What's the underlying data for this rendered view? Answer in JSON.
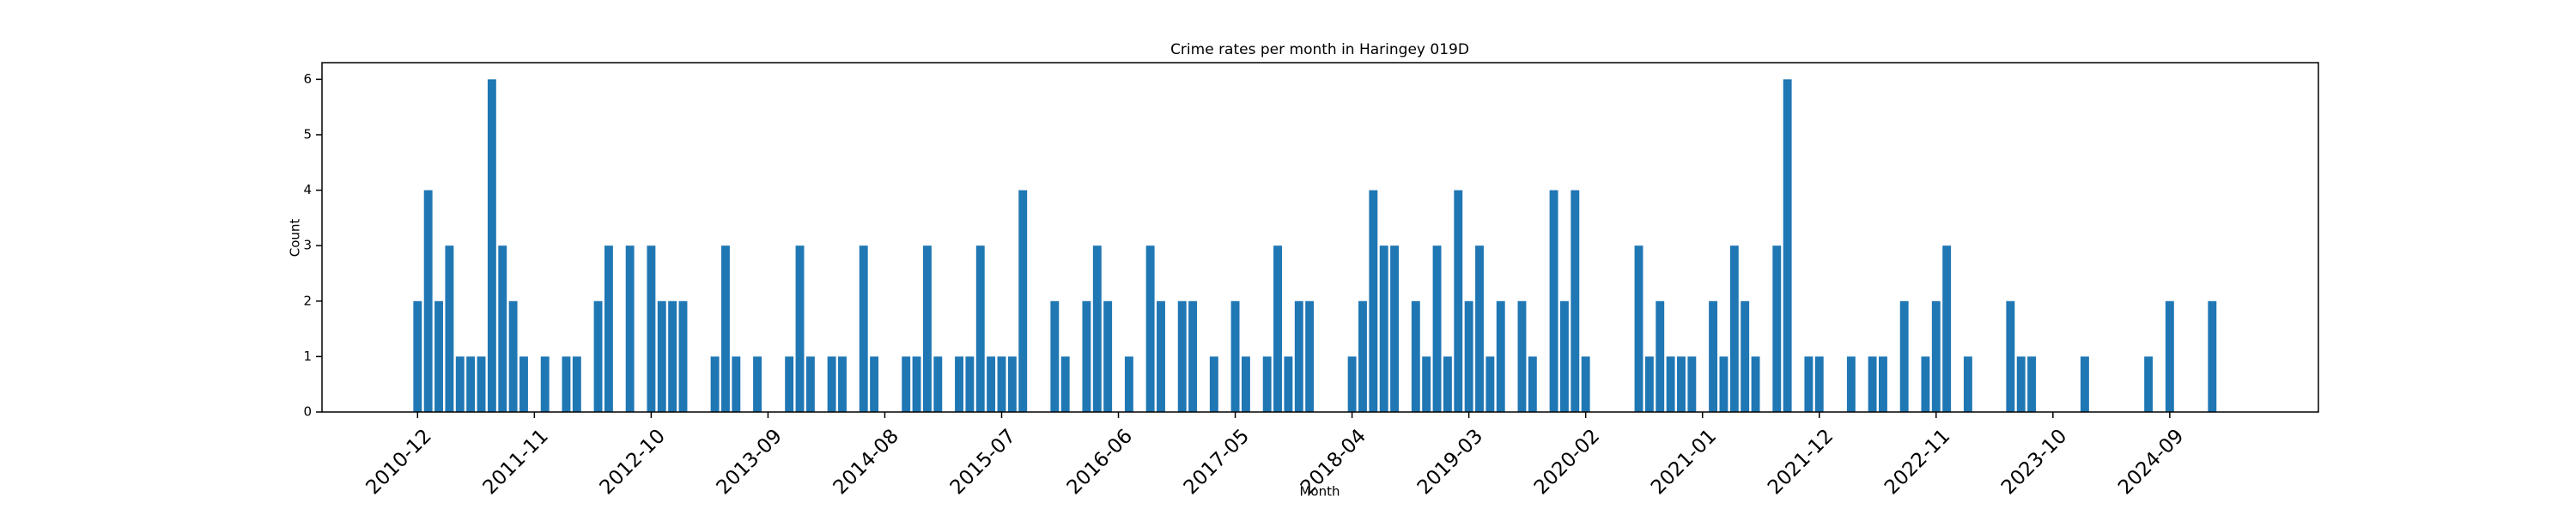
{
  "chart_data": {
    "type": "bar",
    "title": "Crime rates per month in Haringey 019D",
    "xlabel": "Month",
    "ylabel": "Count",
    "color": "#1f77b4",
    "x": [
      "2010-12",
      "2011-01",
      "2011-02",
      "2011-03",
      "2011-04",
      "2011-05",
      "2011-06",
      "2011-07",
      "2011-08",
      "2011-09",
      "2011-10",
      "2011-12",
      "2012-02",
      "2012-03",
      "2012-05",
      "2012-06",
      "2012-08",
      "2012-10",
      "2012-11",
      "2012-12",
      "2013-01",
      "2013-04",
      "2013-05",
      "2013-06",
      "2013-08",
      "2013-11",
      "2013-12",
      "2014-01",
      "2014-03",
      "2014-04",
      "2014-06",
      "2014-07",
      "2014-10",
      "2014-11",
      "2014-12",
      "2015-01",
      "2015-03",
      "2015-04",
      "2015-05",
      "2015-06",
      "2015-07",
      "2015-08",
      "2015-09",
      "2015-12",
      "2016-01",
      "2016-03",
      "2016-04",
      "2016-05",
      "2016-07",
      "2016-09",
      "2016-10",
      "2016-12",
      "2017-01",
      "2017-03",
      "2017-05",
      "2017-06",
      "2017-08",
      "2017-09",
      "2017-10",
      "2017-11",
      "2017-12",
      "2018-04",
      "2018-05",
      "2018-06",
      "2018-07",
      "2018-08",
      "2018-10",
      "2018-11",
      "2018-12",
      "2019-01",
      "2019-02",
      "2019-03",
      "2019-04",
      "2019-05",
      "2019-06",
      "2019-08",
      "2019-09",
      "2019-11",
      "2019-12",
      "2020-01",
      "2020-02",
      "2020-07",
      "2020-08",
      "2020-09",
      "2020-10",
      "2020-11",
      "2020-12",
      "2021-02",
      "2021-03",
      "2021-04",
      "2021-05",
      "2021-06",
      "2021-08",
      "2021-09",
      "2021-11",
      "2021-12",
      "2022-03",
      "2022-05",
      "2022-06",
      "2022-08",
      "2022-10",
      "2022-11",
      "2022-12",
      "2023-02",
      "2023-06",
      "2023-07",
      "2023-08",
      "2024-01",
      "2024-07",
      "2024-09",
      "2025-01"
    ],
    "values": [
      2,
      4,
      2,
      3,
      1,
      1,
      1,
      6,
      3,
      2,
      1,
      1,
      1,
      1,
      2,
      3,
      3,
      3,
      2,
      2,
      2,
      1,
      3,
      1,
      1,
      1,
      3,
      1,
      1,
      1,
      3,
      1,
      1,
      1,
      3,
      1,
      1,
      1,
      3,
      1,
      1,
      1,
      4,
      2,
      1,
      2,
      3,
      2,
      1,
      3,
      2,
      2,
      2,
      1,
      2,
      1,
      1,
      3,
      1,
      2,
      2,
      1,
      2,
      4,
      3,
      3,
      2,
      1,
      3,
      1,
      4,
      2,
      3,
      1,
      2,
      2,
      1,
      4,
      2,
      4,
      1,
      3,
      1,
      2,
      1,
      1,
      1,
      2,
      1,
      3,
      2,
      1,
      3,
      6,
      1,
      1,
      1,
      1,
      1,
      2,
      1,
      2,
      3,
      1,
      2,
      1,
      1,
      1,
      1,
      2,
      2
    ],
    "xlim": [
      "2010-03",
      "2025-11"
    ],
    "xticks": [
      "2010-12",
      "2011-11",
      "2012-10",
      "2013-09",
      "2014-08",
      "2015-07",
      "2016-06",
      "2017-05",
      "2018-04",
      "2019-03",
      "2020-02",
      "2021-01",
      "2021-12",
      "2022-11",
      "2023-10",
      "2024-09"
    ],
    "ylim": [
      0,
      6.3
    ],
    "yticks": [
      0,
      1,
      2,
      3,
      4,
      5,
      6
    ]
  }
}
